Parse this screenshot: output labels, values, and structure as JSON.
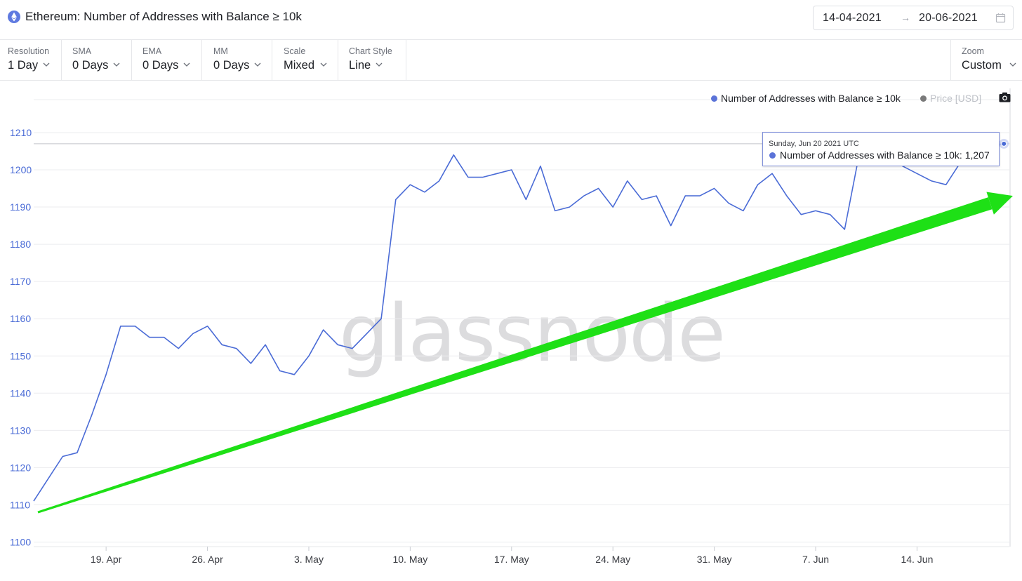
{
  "header": {
    "title": "Ethereum: Number of Addresses with Balance ≥ 10k",
    "date_from": "14-04-2021",
    "date_to": "20-06-2021",
    "date_separator": "→"
  },
  "toolbar": {
    "resolution": {
      "label": "Resolution",
      "value": "1 Day"
    },
    "sma": {
      "label": "SMA",
      "value": "0 Days"
    },
    "ema": {
      "label": "EMA",
      "value": "0 Days"
    },
    "mm": {
      "label": "MM",
      "value": "0 Days"
    },
    "scale": {
      "label": "Scale",
      "value": "Mixed"
    },
    "chart_style": {
      "label": "Chart Style",
      "value": "Line"
    },
    "zoom": {
      "label": "Zoom",
      "value": "Custom"
    }
  },
  "watermark": "glassnode",
  "tooltip": {
    "date": "Sunday, Jun 20 2021 UTC",
    "series": "Number of Addresses with Balance ≥ 10k:",
    "value": "1,207"
  },
  "colors": {
    "series": "#4a6bd6",
    "price": "#7a7a7a",
    "trend_arrow": "#1ee016",
    "axis_text": "#4a6bd6"
  },
  "chart_data": {
    "type": "line",
    "title": "Ethereum: Number of Addresses with Balance ≥ 10k",
    "xlabel": "",
    "ylabel": "",
    "ylim": [
      1100,
      1220
    ],
    "yticks": [
      1100,
      1110,
      1120,
      1130,
      1140,
      1150,
      1160,
      1170,
      1180,
      1190,
      1200,
      1210
    ],
    "x_start": "2021-04-14",
    "x_end": "2021-06-20",
    "x_tick_labels": [
      {
        "date": "2021-04-19",
        "label": "19. Apr"
      },
      {
        "date": "2021-04-26",
        "label": "26. Apr"
      },
      {
        "date": "2021-05-03",
        "label": "3. May"
      },
      {
        "date": "2021-05-10",
        "label": "10. May"
      },
      {
        "date": "2021-05-17",
        "label": "17. May"
      },
      {
        "date": "2021-05-24",
        "label": "24. May"
      },
      {
        "date": "2021-05-31",
        "label": "31. May"
      },
      {
        "date": "2021-06-07",
        "label": "7. Jun"
      },
      {
        "date": "2021-06-14",
        "label": "14. Jun"
      }
    ],
    "legend": [
      {
        "name": "Number of Addresses with Balance ≥ 10k",
        "color": "#4a6bd6",
        "active": true
      },
      {
        "name": "Price [USD]",
        "color": "#7a7a7a",
        "active": false
      }
    ],
    "legend_position": "top-right",
    "grid": true,
    "series": [
      {
        "name": "Number of Addresses with Balance ≥ 10k",
        "x": [
          "2021-04-14",
          "2021-04-15",
          "2021-04-16",
          "2021-04-17",
          "2021-04-18",
          "2021-04-19",
          "2021-04-20",
          "2021-04-21",
          "2021-04-22",
          "2021-04-23",
          "2021-04-24",
          "2021-04-25",
          "2021-04-26",
          "2021-04-27",
          "2021-04-28",
          "2021-04-29",
          "2021-04-30",
          "2021-05-01",
          "2021-05-02",
          "2021-05-03",
          "2021-05-04",
          "2021-05-05",
          "2021-05-06",
          "2021-05-07",
          "2021-05-08",
          "2021-05-09",
          "2021-05-10",
          "2021-05-11",
          "2021-05-12",
          "2021-05-13",
          "2021-05-14",
          "2021-05-15",
          "2021-05-16",
          "2021-05-17",
          "2021-05-18",
          "2021-05-19",
          "2021-05-20",
          "2021-05-21",
          "2021-05-22",
          "2021-05-23",
          "2021-05-24",
          "2021-05-25",
          "2021-05-26",
          "2021-05-27",
          "2021-05-28",
          "2021-05-29",
          "2021-05-30",
          "2021-05-31",
          "2021-06-01",
          "2021-06-02",
          "2021-06-03",
          "2021-06-04",
          "2021-06-05",
          "2021-06-06",
          "2021-06-07",
          "2021-06-08",
          "2021-06-09",
          "2021-06-10",
          "2021-06-11",
          "2021-06-12",
          "2021-06-13",
          "2021-06-14",
          "2021-06-15",
          "2021-06-16",
          "2021-06-17",
          "2021-06-18",
          "2021-06-19",
          "2021-06-20"
        ],
        "y": [
          1111,
          1117,
          1123,
          1124,
          1134,
          1145,
          1158,
          1158,
          1155,
          1155,
          1152,
          1156,
          1158,
          1153,
          1152,
          1148,
          1153,
          1146,
          1145,
          1150,
          1157,
          1153,
          1152,
          1156,
          1160,
          1192,
          1196,
          1194,
          1197,
          1204,
          1198,
          1198,
          1199,
          1200,
          1192,
          1201,
          1189,
          1190,
          1193,
          1195,
          1190,
          1197,
          1192,
          1193,
          1185,
          1193,
          1193,
          1195,
          1191,
          1189,
          1196,
          1199,
          1193,
          1188,
          1189,
          1188,
          1184,
          1204,
          1206,
          1205,
          1201,
          1199,
          1197,
          1196,
          1202,
          1205,
          1206,
          1207
        ]
      }
    ],
    "annotations": [
      {
        "type": "trend-arrow",
        "color": "#1ee016",
        "from": {
          "x": "2021-04-14",
          "y": 1108
        },
        "to": {
          "x": "2021-06-20",
          "y": 1193
        }
      },
      {
        "type": "crosshair",
        "y": 1207
      }
    ]
  }
}
